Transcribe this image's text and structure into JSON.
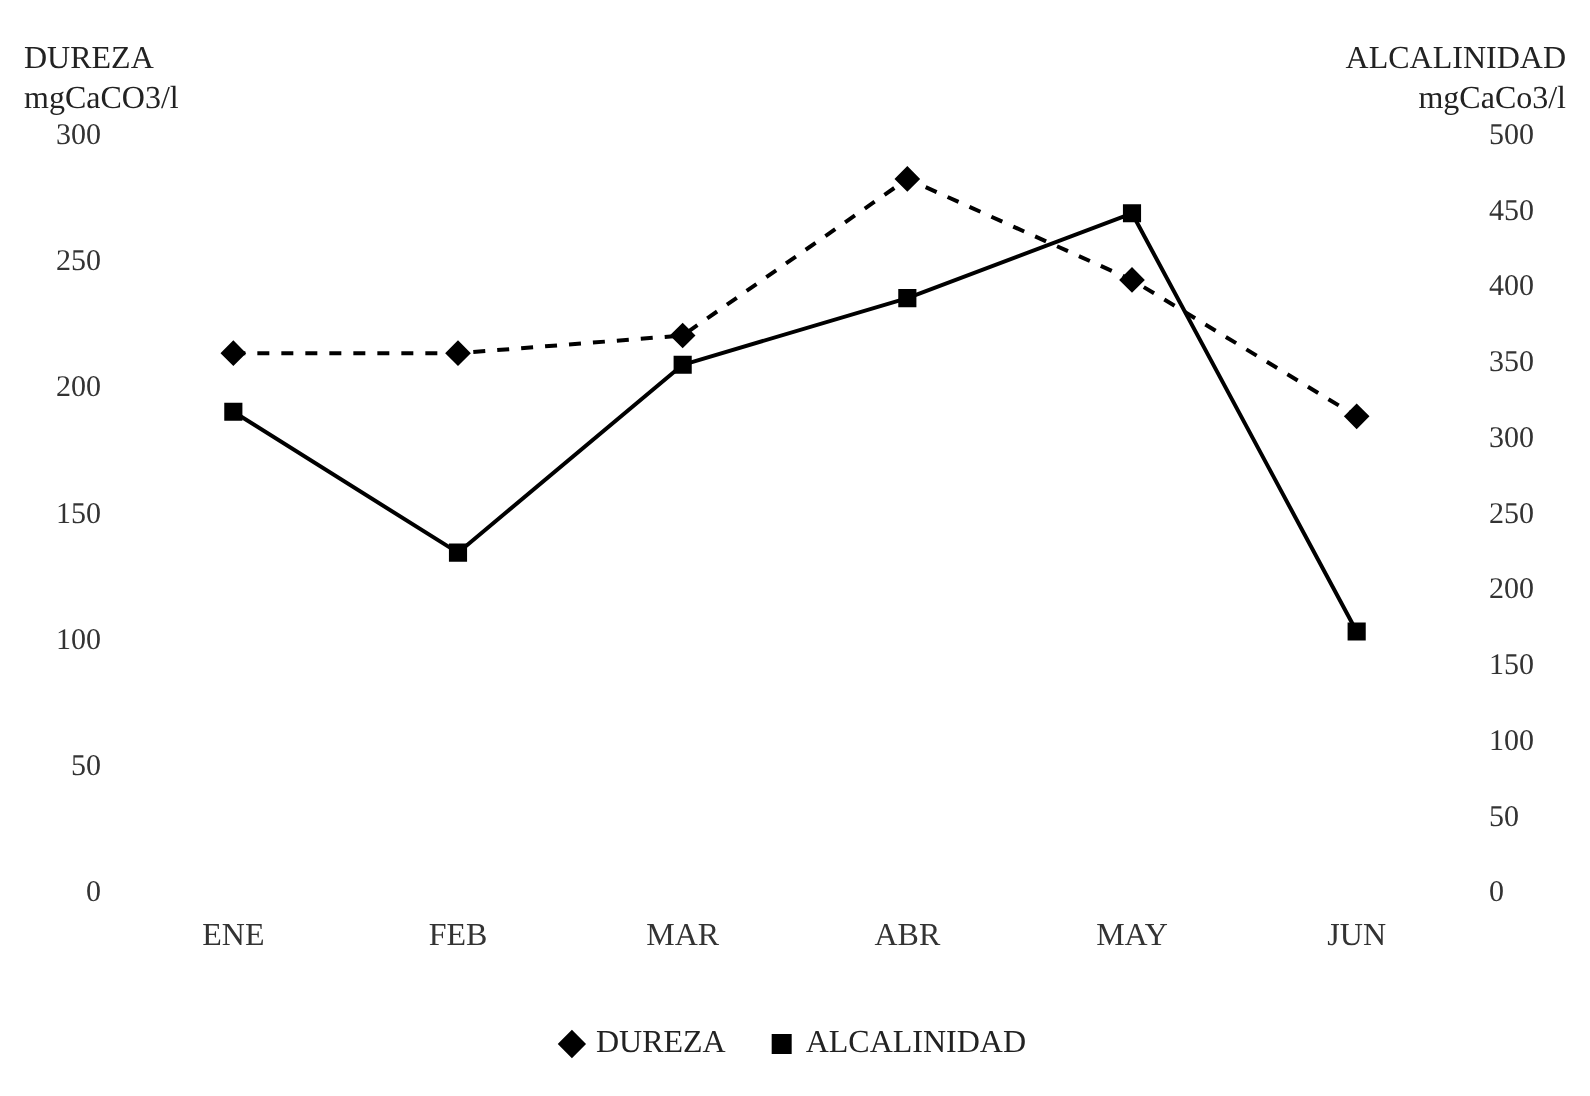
{
  "chart_data": {
    "type": "line",
    "ylabel": "DUREZA mgCaCO3/l",
    "y2label": "ALCALINIDAD mgCaCo3/l",
    "categories": [
      "ENE",
      "FEB",
      "MAR",
      "ABR",
      "MAY",
      "JUN"
    ],
    "series": [
      {
        "name": "DUREZA",
        "color": "#000000",
        "values": [
          214,
          214,
          221,
          283,
          243,
          189
        ],
        "marker": "diamond",
        "line_style": "dashed"
      },
      {
        "name": "ALCALINIDAD",
        "color": "#000000",
        "values": [
          318,
          225,
          349,
          393,
          449,
          173
        ],
        "marker": "square",
        "line_style": "solid",
        "axis": "y2"
      }
    ],
    "ylim": [
      0,
      300
    ],
    "yticks": [
      0,
      50,
      100,
      150,
      200,
      250,
      300
    ],
    "y2lim": [
      0,
      500
    ],
    "y2ticks": [
      0,
      50,
      100,
      150,
      200,
      250,
      300,
      350,
      400,
      450,
      500
    ],
    "grid": false,
    "legend": "bottom"
  }
}
